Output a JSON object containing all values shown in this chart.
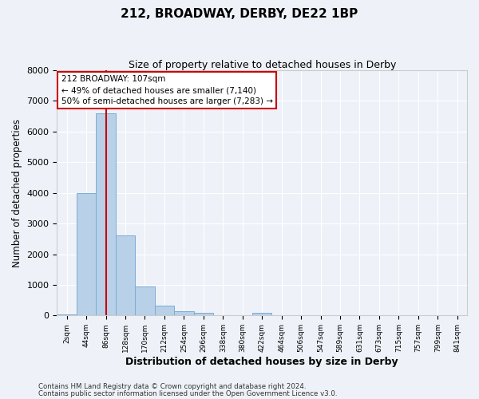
{
  "title": "212, BROADWAY, DERBY, DE22 1BP",
  "subtitle": "Size of property relative to detached houses in Derby",
  "xlabel": "Distribution of detached houses by size in Derby",
  "ylabel": "Number of detached properties",
  "bar_color": "#b8d0e8",
  "bar_edge_color": "#7aadd4",
  "bin_labels": [
    "2sqm",
    "44sqm",
    "86sqm",
    "128sqm",
    "170sqm",
    "212sqm",
    "254sqm",
    "296sqm",
    "338sqm",
    "380sqm",
    "422sqm",
    "464sqm",
    "506sqm",
    "547sqm",
    "589sqm",
    "631sqm",
    "673sqm",
    "715sqm",
    "757sqm",
    "799sqm",
    "841sqm"
  ],
  "bar_heights": [
    40,
    4000,
    6600,
    2600,
    950,
    330,
    150,
    90,
    10,
    10,
    80,
    10,
    0,
    0,
    0,
    0,
    0,
    0,
    0,
    0,
    0
  ],
  "ylim": [
    0,
    8000
  ],
  "yticks": [
    0,
    1000,
    2000,
    3000,
    4000,
    5000,
    6000,
    7000,
    8000
  ],
  "vline_color": "#cc0000",
  "vline_position": 2.5,
  "annotation_title": "212 BROADWAY: 107sqm",
  "annotation_line1": "← 49% of detached houses are smaller (7,140)",
  "annotation_line2": "50% of semi-detached houses are larger (7,283) →",
  "annotation_box_color": "#cc0000",
  "footer_line1": "Contains HM Land Registry data © Crown copyright and database right 2024.",
  "footer_line2": "Contains public sector information licensed under the Open Government Licence v3.0.",
  "background_color": "#eef2f8",
  "grid_color": "#ffffff",
  "spine_color": "#cccccc"
}
